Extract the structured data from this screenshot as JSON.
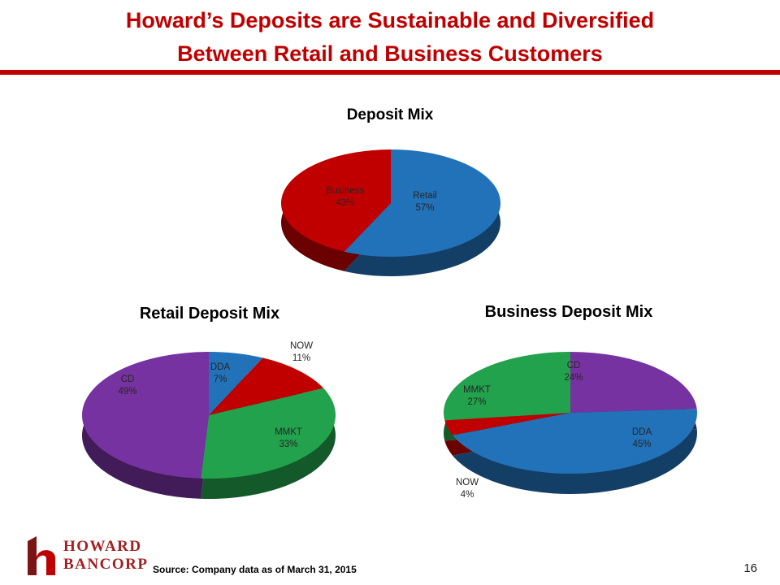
{
  "header": {
    "title_line1": "Howard’s Deposits are Sustainable and Diversified",
    "title_line2": "Between Retail and Business Customers"
  },
  "footer": {
    "source": "Source: Company data as of March 31, 2015",
    "page_number": "16",
    "logo_line1": "HOWARD",
    "logo_line2": "BANCORP"
  },
  "colors": {
    "title_red": "#C00000",
    "rule_red": "#C00000",
    "blue": "#2272B9",
    "red": "#C00000",
    "purple": "#7632A0",
    "green": "#22A24C",
    "logo_red": "#A32020"
  },
  "chart_data": [
    {
      "type": "pie",
      "style": "3d-pie",
      "title": "Deposit Mix",
      "legend": "none",
      "labels": "inside",
      "slices": [
        {
          "label": "Retail",
          "value": 57,
          "pct": "57%",
          "color": "#2272B9"
        },
        {
          "label": "Business",
          "value": 43,
          "pct": "43%",
          "color": "#C00000"
        }
      ]
    },
    {
      "type": "pie",
      "style": "3d-pie",
      "title": "Retail Deposit Mix",
      "legend": "none",
      "labels": "inside",
      "slices": [
        {
          "label": "DDA",
          "value": 7,
          "pct": "7%",
          "color": "#2272B9"
        },
        {
          "label": "NOW",
          "value": 11,
          "pct": "11%",
          "color": "#C00000"
        },
        {
          "label": "MMKT",
          "value": 33,
          "pct": "33%",
          "color": "#22A24C"
        },
        {
          "label": "CD",
          "value": 49,
          "pct": "49%",
          "color": "#7632A0"
        }
      ]
    },
    {
      "type": "pie",
      "style": "3d-pie",
      "title": "Business Deposit Mix",
      "legend": "none",
      "labels": "inside",
      "slices": [
        {
          "label": "CD",
          "value": 24,
          "pct": "24%",
          "color": "#7632A0"
        },
        {
          "label": "DDA",
          "value": 45,
          "pct": "45%",
          "color": "#2272B9"
        },
        {
          "label": "NOW",
          "value": 4,
          "pct": "4%",
          "color": "#C00000"
        },
        {
          "label": "MMKT",
          "value": 27,
          "pct": "27%",
          "color": "#22A24C"
        }
      ]
    }
  ]
}
